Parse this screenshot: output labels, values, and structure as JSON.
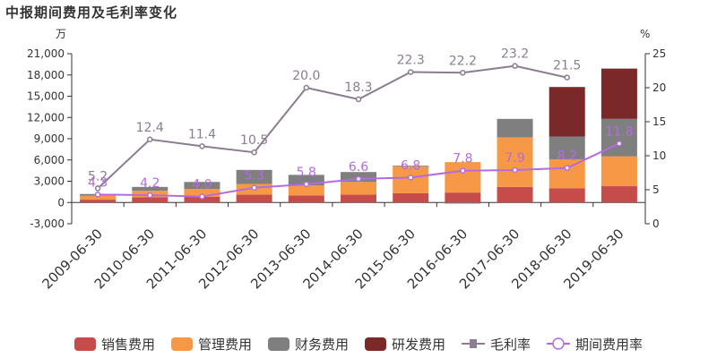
{
  "chart_data": {
    "type": "bar",
    "stacked": true,
    "title": "中报期间费用及毛利率变化",
    "left_unit": "万",
    "right_unit": "%",
    "categories": [
      "2009-06-30",
      "2010-06-30",
      "2011-06-30",
      "2012-06-30",
      "2013-06-30",
      "2014-06-30",
      "2015-06-30",
      "2016-06-30",
      "2017-06-30",
      "2018-06-30",
      "2019-06-30"
    ],
    "y_left": {
      "min": -3000,
      "max": 21000,
      "ticks": [
        -3000,
        0,
        3000,
        6000,
        9000,
        12000,
        15000,
        18000,
        21000
      ],
      "tick_labels": [
        "-3,000",
        "0",
        "3,000",
        "6,000",
        "9,000",
        "12,000",
        "15,000",
        "18,000",
        "21,000"
      ]
    },
    "y_right": {
      "min": 0,
      "max": 25,
      "ticks": [
        0,
        5,
        10,
        15,
        20,
        25
      ],
      "tick_labels": [
        "0",
        "5",
        "10",
        "15",
        "20",
        "25"
      ]
    },
    "series": [
      {
        "name": "销售费用",
        "kind": "bar",
        "axis": "left",
        "color": "#c64b4b",
        "values": [
          400,
          750,
          800,
          1100,
          1000,
          1100,
          1300,
          1400,
          2200,
          2000,
          2300
        ]
      },
      {
        "name": "管理费用",
        "kind": "bar",
        "axis": "left",
        "color": "#f69845",
        "values": [
          550,
          900,
          1100,
          1500,
          1400,
          1800,
          3800,
          4300,
          7000,
          4100,
          4200
        ]
      },
      {
        "name": "财务费用",
        "kind": "bar",
        "axis": "left",
        "color": "#7f7f7f",
        "values": [
          250,
          550,
          1000,
          2000,
          1500,
          1400,
          100,
          -150,
          2600,
          3200,
          5300
        ]
      },
      {
        "name": "研发费用",
        "kind": "bar",
        "axis": "left",
        "color": "#7b2828",
        "values": [
          0,
          0,
          0,
          0,
          0,
          0,
          0,
          0,
          0,
          7000,
          7100
        ]
      },
      {
        "name": "毛利率",
        "kind": "line",
        "axis": "right",
        "color": "#8c7c91",
        "values": [
          5.2,
          12.4,
          11.4,
          10.5,
          20.0,
          18.3,
          22.3,
          22.2,
          23.2,
          21.5,
          null
        ],
        "labels": [
          "5.2",
          "12.4",
          "11.4",
          "10.5",
          "20.0",
          "18.3",
          "22.3",
          "22.2",
          "23.2",
          "21.5",
          ""
        ]
      },
      {
        "name": "期间费用率",
        "kind": "line",
        "axis": "right",
        "color": "#b46be0",
        "values": [
          4.3,
          4.2,
          4.0,
          5.3,
          5.8,
          6.6,
          6.8,
          7.8,
          7.9,
          8.2,
          11.8
        ],
        "labels": [
          "4.3",
          "4.2",
          "4.0",
          "5.3",
          "5.8",
          "6.6",
          "6.8",
          "7.8",
          "7.9",
          "8.2",
          "11.8"
        ]
      }
    ],
    "legend_position": "bottom",
    "grid": false
  }
}
